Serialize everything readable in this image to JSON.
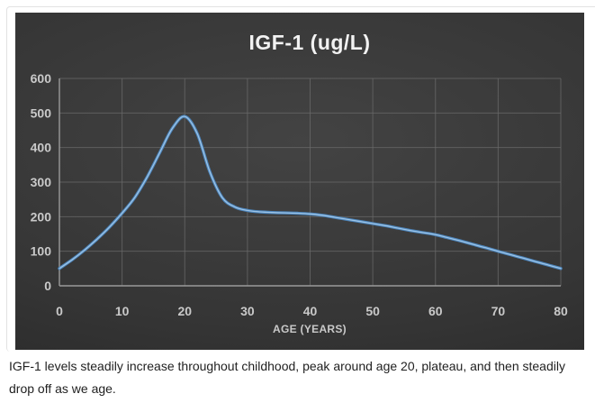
{
  "frame": {
    "border_color": "#e2e2e2"
  },
  "chart_data": {
    "type": "line",
    "title": "IGF-1 (ug/L)",
    "xlabel": "AGE (YEARS)",
    "ylabel": "",
    "series_name": "IGF-1",
    "x": [
      0,
      2,
      4,
      6,
      8,
      10,
      12,
      14,
      16,
      18,
      20,
      22,
      24,
      26,
      28,
      30,
      32,
      34,
      36,
      38,
      40,
      42,
      44,
      46,
      48,
      50,
      52,
      54,
      56,
      58,
      60,
      62,
      64,
      66,
      68,
      70,
      72,
      74,
      76,
      78,
      80
    ],
    "values": [
      50,
      75,
      103,
      135,
      170,
      210,
      255,
      315,
      385,
      455,
      490,
      440,
      330,
      255,
      228,
      218,
      214,
      212,
      211,
      210,
      208,
      204,
      198,
      192,
      186,
      180,
      174,
      167,
      160,
      154,
      148,
      139,
      130,
      120,
      110,
      100,
      90,
      80,
      70,
      60,
      50
    ],
    "xlim": [
      0,
      80
    ],
    "ylim": [
      0,
      600
    ],
    "x_ticks": [
      0,
      10,
      20,
      30,
      40,
      50,
      60,
      70,
      80
    ],
    "y_ticks": [
      0,
      100,
      200,
      300,
      400,
      500,
      600
    ],
    "grid": true,
    "legend": false,
    "peak": {
      "age": 20,
      "value": 490
    },
    "colors": {
      "line": "#4d86bd",
      "line_highlight": "#9cc3e5",
      "background": "#333333",
      "grid": "#6a6a6a",
      "axis": "#9a9a9a",
      "tick_text": "#c9c9c9",
      "title_text": "#f2f2f2"
    }
  },
  "caption": {
    "text": "IGF-1 levels steadily increase throughout childhood, peak around age 20, plateau, and then steadily drop off as we age."
  }
}
